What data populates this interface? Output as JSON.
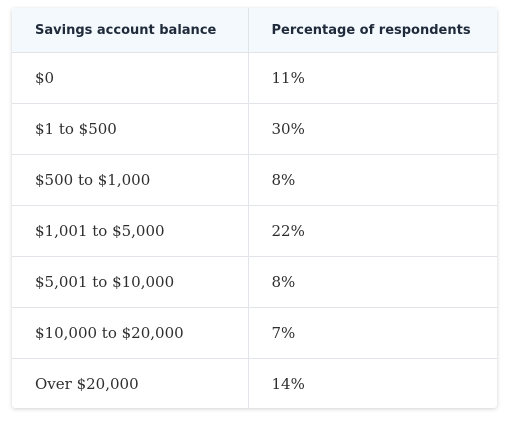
{
  "chart_data": {
    "type": "table",
    "columns": [
      "Savings account balance",
      "Percentage of respondents"
    ],
    "rows": [
      [
        "$0",
        "11%"
      ],
      [
        "$1 to $500",
        "30%"
      ],
      [
        "$500 to $1,000",
        "8%"
      ],
      [
        "$1,001 to $5,000",
        "22%"
      ],
      [
        "$5,001 to $10,000",
        "8%"
      ],
      [
        "$10,000 to $20,000",
        "7%"
      ],
      [
        "Over $20,000",
        "14%"
      ]
    ],
    "values": [
      11,
      30,
      8,
      22,
      8,
      7,
      14
    ]
  },
  "colors": {
    "header_background": "#f4f9fe",
    "border": "#e1e5ea",
    "header_text": "#1f2b3a",
    "body_text": "#2e2e2e"
  }
}
